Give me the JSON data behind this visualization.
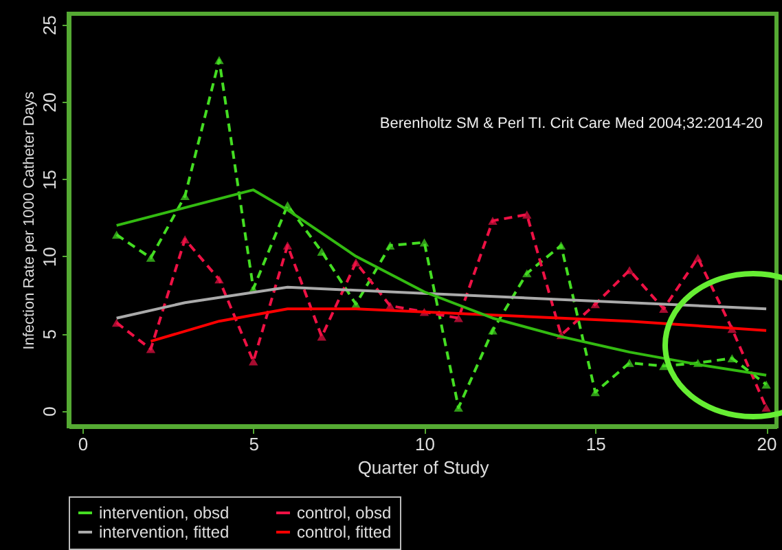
{
  "chart_data": {
    "type": "line",
    "xlabel": "Quarter of Study",
    "ylabel": "Infection Rate per 1000 Catheter Days",
    "x": [
      1,
      2,
      3,
      4,
      5,
      6,
      7,
      8,
      9,
      10,
      11,
      12,
      13,
      14,
      15,
      16,
      17,
      18,
      19,
      20
    ],
    "xlim": [
      -0.4,
      20.3
    ],
    "xticks": [
      0,
      5,
      10,
      15,
      20
    ],
    "ylim": [
      -1,
      25.7
    ],
    "yticks": [
      0,
      5,
      10,
      15,
      20,
      25
    ],
    "series": [
      {
        "name": "intervention, obsd",
        "color": "#44dd22",
        "marker": "triangle",
        "line_style": "dashed",
        "values": [
          11.4,
          9.9,
          13.9,
          22.7,
          7.9,
          13.3,
          10.3,
          6.9,
          10.7,
          10.9,
          0.2,
          5.2,
          8.9,
          10.7,
          1.2,
          3.1,
          2.9,
          3.1,
          3.4,
          1.7
        ]
      },
      {
        "name": "control, obsd",
        "color": "#ee1144",
        "marker": "triangle",
        "line_style": "dashed",
        "values": [
          5.7,
          4.0,
          11.1,
          8.5,
          3.2,
          10.7,
          4.8,
          9.6,
          6.8,
          6.4,
          6.0,
          12.3,
          12.7,
          4.9,
          6.9,
          9.1,
          6.6,
          9.9,
          5.3,
          0.2
        ]
      },
      {
        "name": "intervention, fitted",
        "color": "#aaaaaa",
        "line_style": "solid",
        "x": [
          1,
          3,
          6,
          10,
          15,
          20
        ],
        "values": [
          6.0,
          7.0,
          8.0,
          7.6,
          7.1,
          6.6
        ]
      },
      {
        "name": "control, fitted",
        "color": "#ff0000",
        "line_style": "solid",
        "x": [
          2,
          4,
          6,
          8,
          12,
          16,
          20
        ],
        "values": [
          4.5,
          5.8,
          6.6,
          6.6,
          6.2,
          5.8,
          5.2
        ]
      },
      {
        "color": "#33bb11",
        "line_style": "solid",
        "x": [
          1,
          5,
          6,
          8,
          10,
          12,
          14,
          16,
          18,
          20
        ],
        "values": [
          12.0,
          14.3,
          13.0,
          10.0,
          7.7,
          6.0,
          4.8,
          3.8,
          3.0,
          2.3
        ]
      }
    ],
    "legend": "bottom",
    "grid": false,
    "annotations": [
      "Berenholtz SM & Perl TI. Crit Care Med 2004;32:2014-20"
    ]
  }
}
